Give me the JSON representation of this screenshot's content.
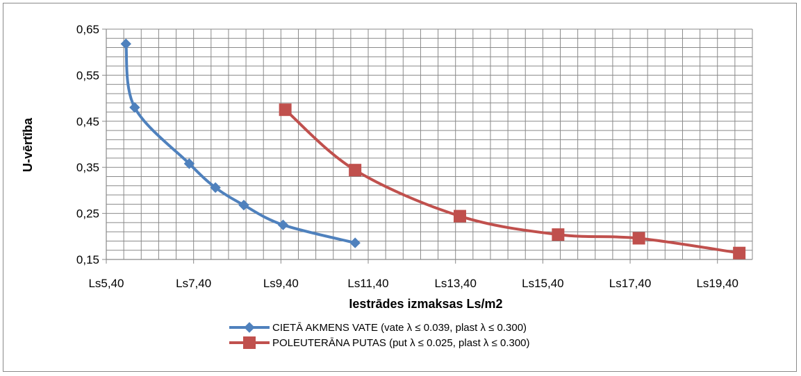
{
  "chart_data": {
    "type": "line",
    "title": "",
    "xlabel": "Iestrādes izmaksas Ls/m2",
    "ylabel": "U-vērtība",
    "xlim": [
      5.4,
      20.2
    ],
    "ylim": [
      0.15,
      0.65
    ],
    "x_ticks": [
      5.4,
      7.4,
      9.4,
      11.4,
      13.4,
      15.4,
      17.4,
      19.4
    ],
    "x_tick_labels": [
      "Ls5,40",
      "Ls7,40",
      "Ls9,40",
      "Ls11,40",
      "Ls13,40",
      "Ls15,40",
      "Ls17,40",
      "Ls19,40"
    ],
    "y_ticks": [
      0.15,
      0.25,
      0.35,
      0.45,
      0.55,
      0.65
    ],
    "y_tick_labels": [
      "0,15",
      "0,25",
      "0,35",
      "0,45",
      "0,55",
      "0,65"
    ],
    "grid": true,
    "legend_position": "bottom",
    "series": [
      {
        "name": "CIETĀ AKMENS VATE (vate λ ≤ 0.039, plast λ ≤ 0.300)",
        "color": "#4F81BD",
        "marker": "diamond",
        "x": [
          5.85,
          6.05,
          7.3,
          7.9,
          8.55,
          9.45,
          11.1
        ],
        "y": [
          0.618,
          0.48,
          0.358,
          0.306,
          0.268,
          0.225,
          0.186
        ]
      },
      {
        "name": "POLEUTERĀNA PUTAS (put λ ≤ 0.025, plast λ ≤ 0.300)",
        "color": "#C0504D",
        "marker": "square",
        "x": [
          9.5,
          11.1,
          13.5,
          15.75,
          17.6,
          19.9
        ],
        "y": [
          0.475,
          0.344,
          0.244,
          0.204,
          0.196,
          0.164
        ]
      }
    ]
  }
}
